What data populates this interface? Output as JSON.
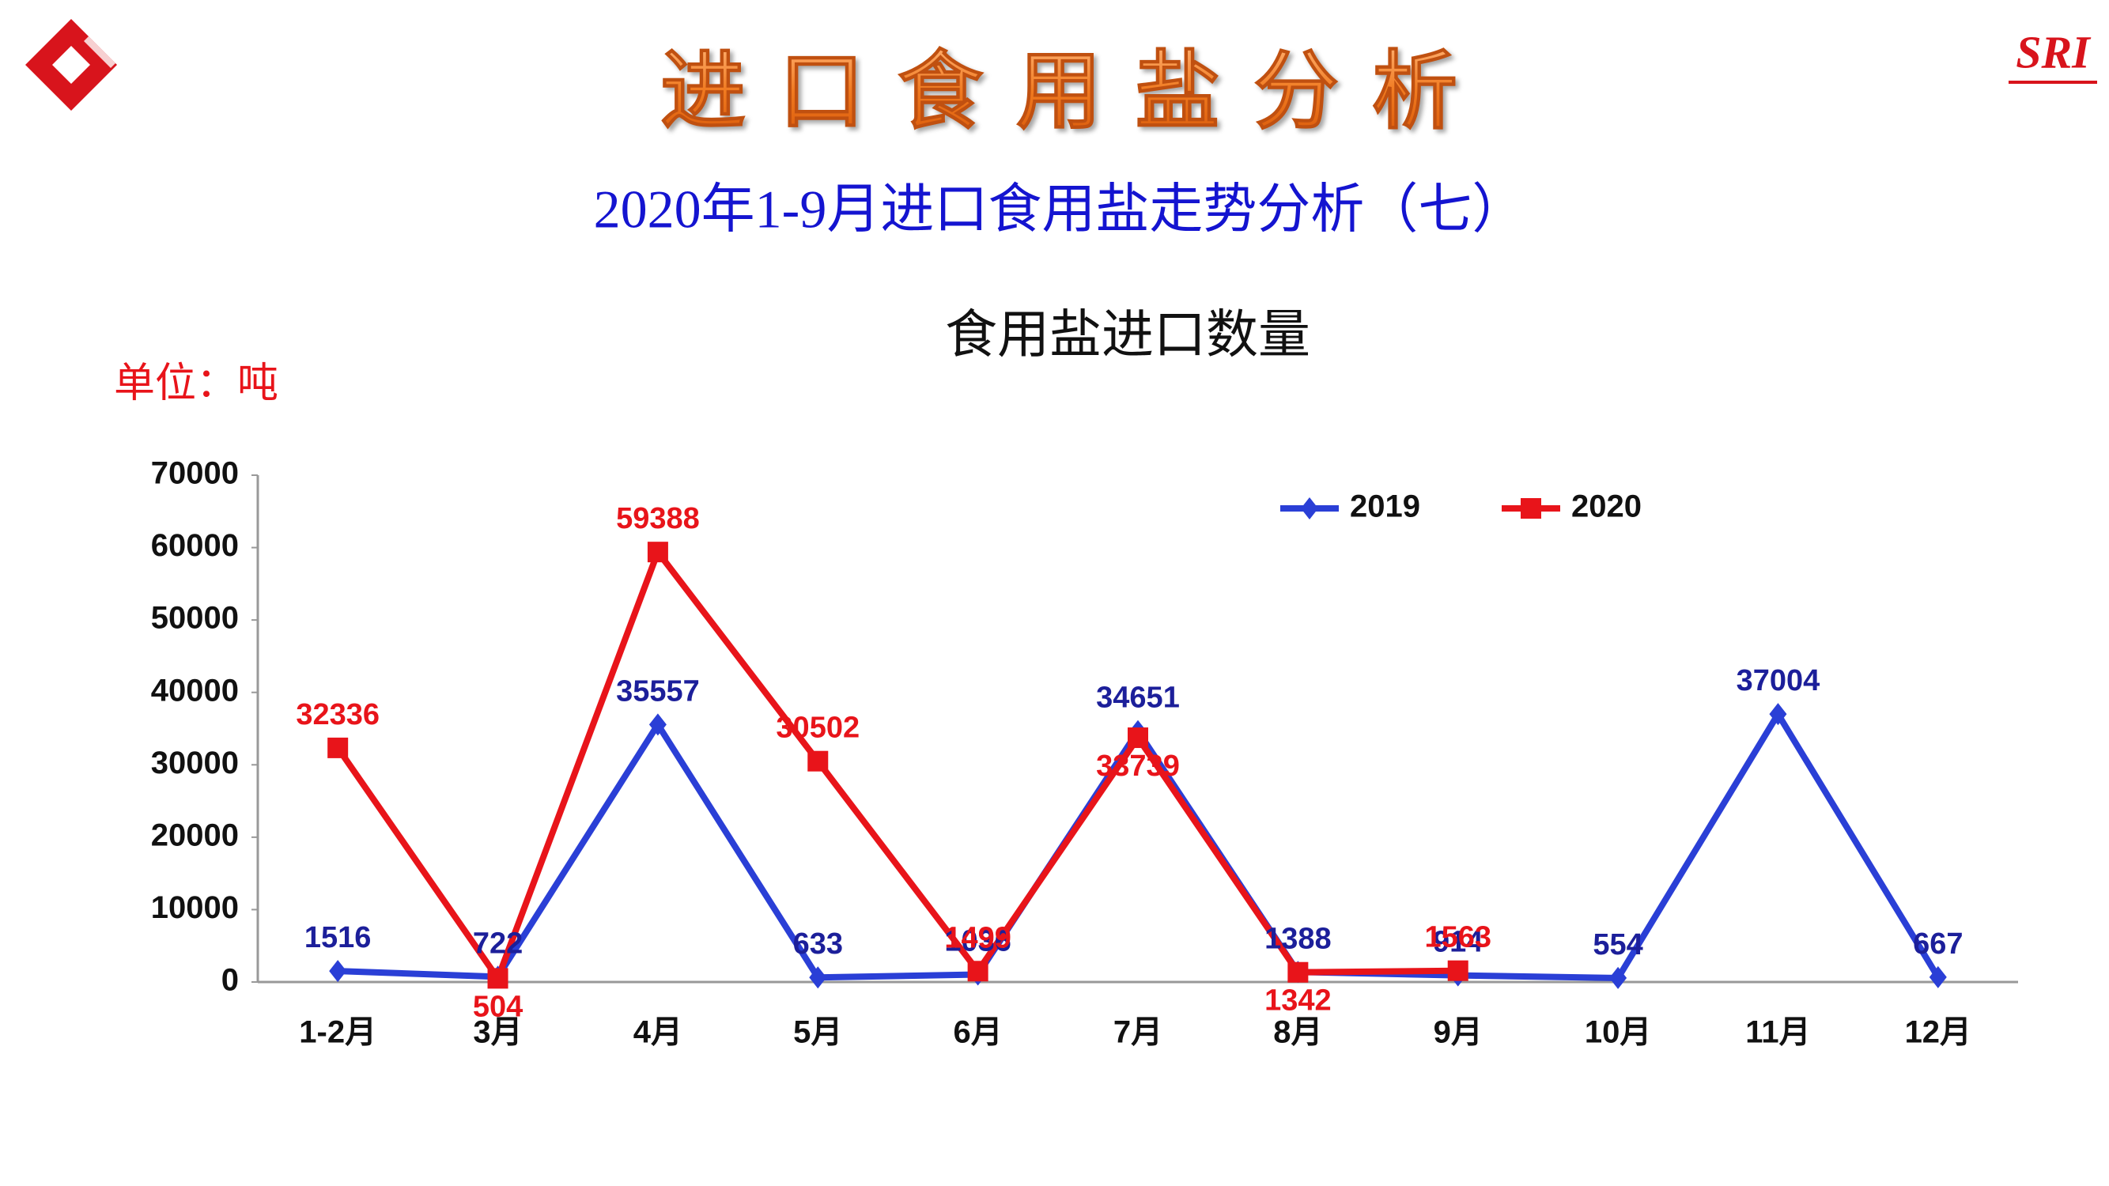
{
  "logo_text": "SRI",
  "heading": "进口食用盐分析",
  "subheading": "2020年1-9月进口食用盐走势分析（七）",
  "chart_data": {
    "type": "line",
    "title": "食用盐进口数量",
    "unit_label": "单位：吨",
    "categories": [
      "1-2月",
      "3月",
      "4月",
      "5月",
      "6月",
      "7月",
      "8月",
      "9月",
      "10月",
      "11月",
      "12月"
    ],
    "series": [
      {
        "name": "2019",
        "color": "#2a3fd6",
        "label_color": "#1c1f9a",
        "marker": "diamond",
        "values": [
          1516,
          722,
          35557,
          633,
          1036,
          34651,
          1388,
          914,
          554,
          37004,
          667
        ]
      },
      {
        "name": "2020",
        "color": "#e8141a",
        "label_color": "#e8141a",
        "marker": "square",
        "values": [
          32336,
          504,
          59388,
          30502,
          1499,
          33739,
          1342,
          1563,
          null,
          null,
          null
        ]
      }
    ],
    "ylim": [
      0,
      70000
    ],
    "yticks": [
      0,
      10000,
      20000,
      30000,
      40000,
      50000,
      60000,
      70000
    ],
    "legend": "top-right",
    "grid": false
  }
}
